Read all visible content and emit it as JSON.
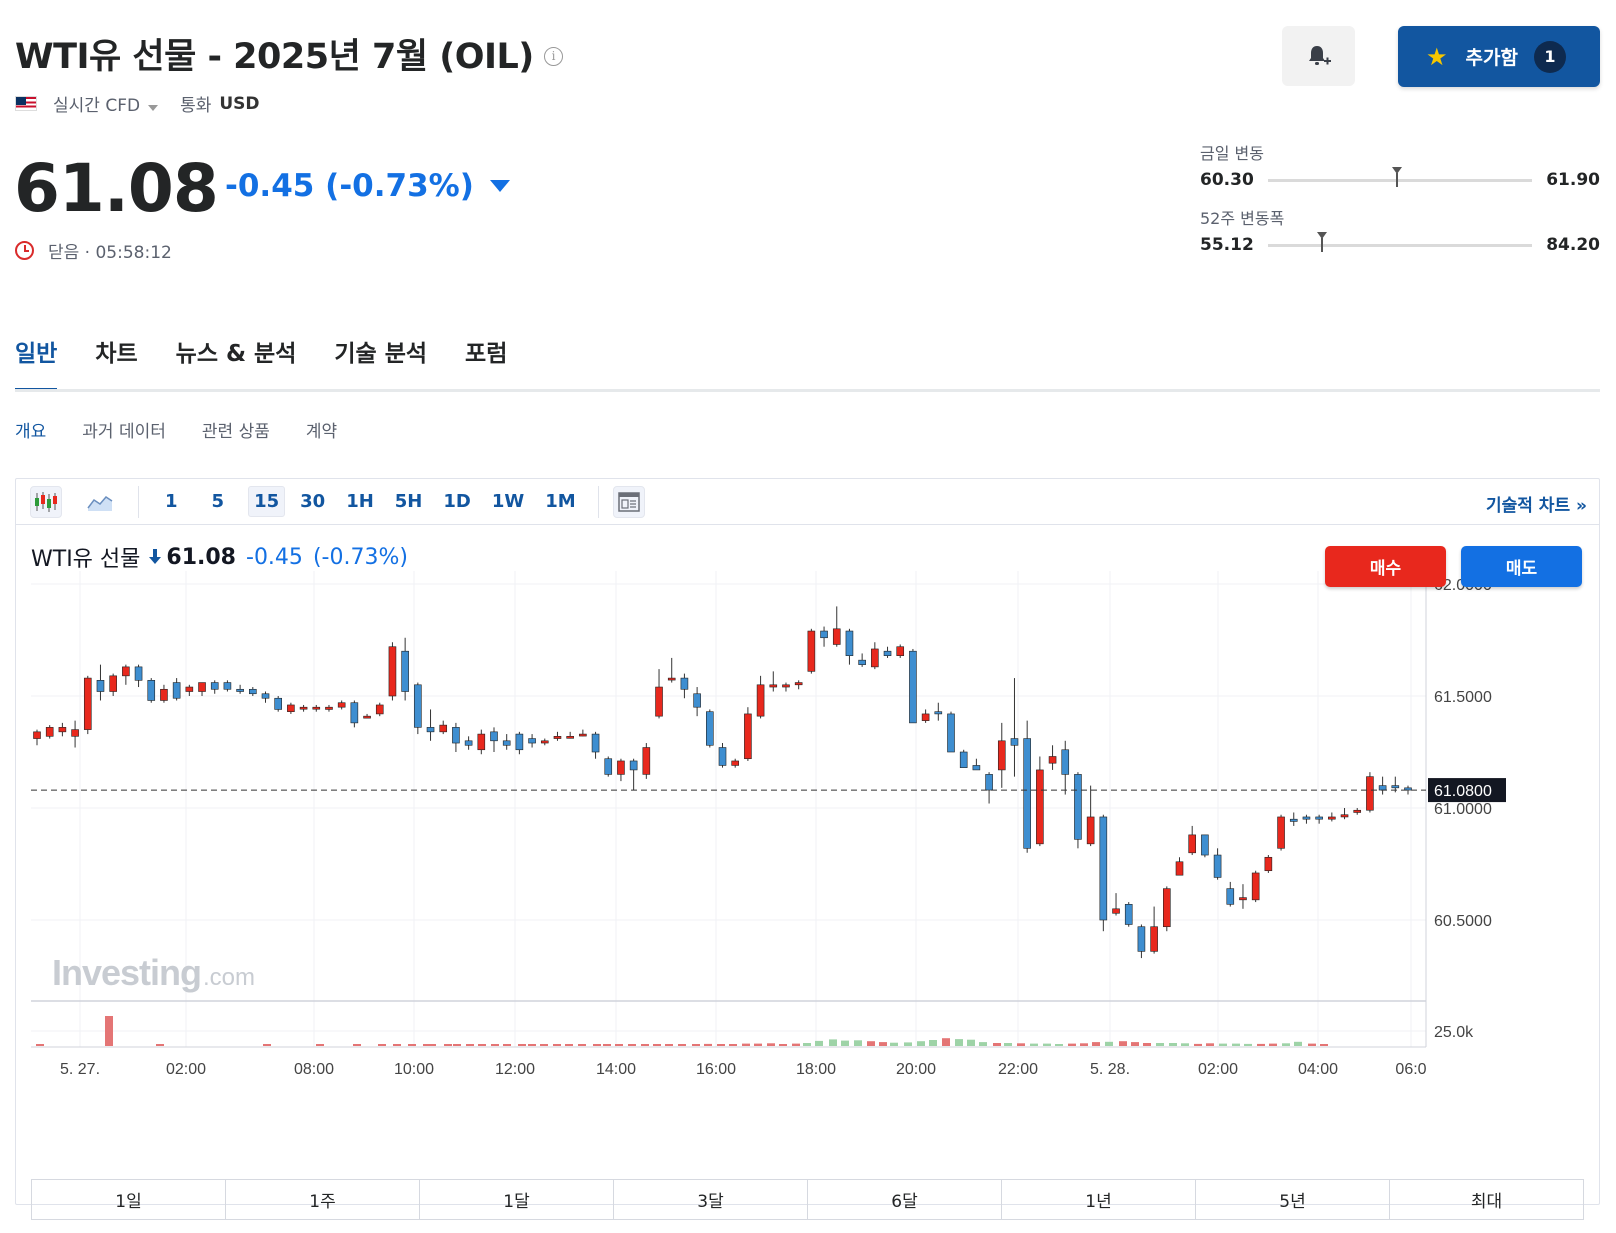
{
  "header": {
    "title": "WTI유 선물 - 2025년 7월 (OIL)",
    "info_symbol": "i",
    "market_type": "실시간 CFD",
    "currency_label": "통화",
    "currency": "USD",
    "add_button_label": "추가함",
    "add_button_count": "1"
  },
  "quote": {
    "price": "61.08",
    "change": "-0.45 (-0.73%)",
    "status": "닫음 · 05:58:12"
  },
  "ranges": {
    "day": {
      "label": "금일 변동",
      "low": "60.30",
      "high": "61.90",
      "position": 0.49
    },
    "week52": {
      "label": "52주 변동폭",
      "low": "55.12",
      "high": "84.20",
      "position": 0.205
    }
  },
  "tabs": [
    "일반",
    "차트",
    "뉴스 & 분석",
    "기술 분석",
    "포럼"
  ],
  "subtabs": [
    "개요",
    "과거 데이터",
    "관련 상품",
    "계약"
  ],
  "toolbar": {
    "intervals": [
      "1",
      "5",
      "15",
      "30",
      "1H",
      "5H",
      "1D",
      "1W",
      "1M"
    ],
    "selected_interval": "15",
    "tech_chart_link": "기술적 차트 »"
  },
  "legend": {
    "name": "WTI유 선물",
    "price": "61.08",
    "change": "-0.45",
    "percent": "(-0.73%)"
  },
  "trade": {
    "buy": "매수",
    "sell": "매도"
  },
  "watermark": {
    "brand": "Investing",
    "suffix": ".com"
  },
  "periods": [
    "1일",
    "1주",
    "1달",
    "3달",
    "6달",
    "1년",
    "5년",
    "최대"
  ],
  "colors": {
    "up": "#e8281d",
    "down": "#3e8ed0",
    "accent": "#1256a0",
    "change": "#1370e3"
  },
  "chart_data": {
    "type": "candlestick",
    "ylim": [
      60.2,
      62.05
    ],
    "y_ticks": [
      "62.0000",
      "61.5000",
      "61.0000",
      "60.5000"
    ],
    "last_price_label": "61.0800",
    "last_price": 61.08,
    "volume_tick": "25.0k",
    "x_ticks": [
      "5. 27.",
      "02:00",
      "08:00",
      "10:00",
      "12:00",
      "14:00",
      "16:00",
      "18:00",
      "20:00",
      "22:00",
      "5. 28.",
      "02:00",
      "04:00",
      "06:0"
    ],
    "candles": [
      [
        61.31,
        61.34,
        61.28,
        61.35
      ],
      [
        61.32,
        61.36,
        61.31,
        61.37
      ],
      [
        61.34,
        61.36,
        61.32,
        61.38
      ],
      [
        61.32,
        61.35,
        61.27,
        61.39
      ],
      [
        61.35,
        61.58,
        61.33,
        61.59
      ],
      [
        61.57,
        61.52,
        61.48,
        61.64
      ],
      [
        61.52,
        61.59,
        61.5,
        61.6
      ],
      [
        61.59,
        61.63,
        61.55,
        61.64
      ],
      [
        61.63,
        61.57,
        61.54,
        61.64
      ],
      [
        61.57,
        61.48,
        61.47,
        61.58
      ],
      [
        61.48,
        61.53,
        61.47,
        61.55
      ],
      [
        61.56,
        61.49,
        61.48,
        61.58
      ],
      [
        61.52,
        61.54,
        61.5,
        61.55
      ],
      [
        61.52,
        61.56,
        61.5,
        61.56
      ],
      [
        61.56,
        61.53,
        61.51,
        61.57
      ],
      [
        61.56,
        61.53,
        61.52,
        61.57
      ],
      [
        61.53,
        61.52,
        61.51,
        61.55
      ],
      [
        61.53,
        61.51,
        61.5,
        61.54
      ],
      [
        61.51,
        61.49,
        61.47,
        61.52
      ],
      [
        61.49,
        61.44,
        61.43,
        61.5
      ],
      [
        61.43,
        61.46,
        61.42,
        61.47
      ],
      [
        61.45,
        61.45,
        61.43,
        61.46
      ],
      [
        61.45,
        61.45,
        61.43,
        61.46
      ],
      [
        61.44,
        61.45,
        61.43,
        61.46
      ],
      [
        61.45,
        61.47,
        61.44,
        61.48
      ],
      [
        61.47,
        61.38,
        61.36,
        61.48
      ],
      [
        61.41,
        61.41,
        61.4,
        61.42
      ],
      [
        61.42,
        61.46,
        61.41,
        61.47
      ],
      [
        61.5,
        61.72,
        61.48,
        61.74
      ],
      [
        61.7,
        61.52,
        61.48,
        61.76
      ],
      [
        61.55,
        61.36,
        61.33,
        61.56
      ],
      [
        61.36,
        61.34,
        61.3,
        61.44
      ],
      [
        61.34,
        61.37,
        61.33,
        61.39
      ],
      [
        61.36,
        61.29,
        61.25,
        61.38
      ],
      [
        61.3,
        61.28,
        61.26,
        61.32
      ],
      [
        61.26,
        61.33,
        61.24,
        61.35
      ],
      [
        61.34,
        61.3,
        61.25,
        61.36
      ],
      [
        61.3,
        61.28,
        61.26,
        61.33
      ],
      [
        61.33,
        61.26,
        61.24,
        61.34
      ],
      [
        61.31,
        61.29,
        61.27,
        61.33
      ],
      [
        61.29,
        61.3,
        61.28,
        61.31
      ],
      [
        61.31,
        61.32,
        61.3,
        61.34
      ],
      [
        61.32,
        61.32,
        61.31,
        61.34
      ],
      [
        61.33,
        61.33,
        61.32,
        61.35
      ],
      [
        61.33,
        61.25,
        61.22,
        61.34
      ],
      [
        61.22,
        61.15,
        61.14,
        61.23
      ],
      [
        61.15,
        61.21,
        61.12,
        61.22
      ],
      [
        61.21,
        61.17,
        61.08,
        61.22
      ],
      [
        61.15,
        61.27,
        61.13,
        61.29
      ],
      [
        61.41,
        61.54,
        61.4,
        61.62
      ],
      [
        61.58,
        61.58,
        61.56,
        61.67
      ],
      [
        61.58,
        61.53,
        61.49,
        61.6
      ],
      [
        61.51,
        61.45,
        61.41,
        61.54
      ],
      [
        61.43,
        61.28,
        61.27,
        61.44
      ],
      [
        61.27,
        61.19,
        61.18,
        61.29
      ],
      [
        61.19,
        61.21,
        61.18,
        61.22
      ],
      [
        61.22,
        61.42,
        61.21,
        61.45
      ],
      [
        61.41,
        61.55,
        61.4,
        61.59
      ],
      [
        61.54,
        61.55,
        61.52,
        61.61
      ],
      [
        61.54,
        61.55,
        61.52,
        61.56
      ],
      [
        61.55,
        61.56,
        61.53,
        61.57
      ],
      [
        61.61,
        61.79,
        61.6,
        61.8
      ],
      [
        61.79,
        61.76,
        61.72,
        61.81
      ],
      [
        61.73,
        61.8,
        61.72,
        61.9
      ],
      [
        61.79,
        61.68,
        61.64,
        61.8
      ],
      [
        61.66,
        61.64,
        61.63,
        61.69
      ],
      [
        61.63,
        61.71,
        61.62,
        61.74
      ],
      [
        61.7,
        61.68,
        61.67,
        61.72
      ],
      [
        61.68,
        61.72,
        61.67,
        61.73
      ],
      [
        61.7,
        61.38,
        61.38,
        61.71
      ],
      [
        61.39,
        61.42,
        61.38,
        61.44
      ],
      [
        61.43,
        61.42,
        61.39,
        61.47
      ],
      [
        61.42,
        61.25,
        61.25,
        61.43
      ],
      [
        61.25,
        61.18,
        61.18,
        61.26
      ],
      [
        61.19,
        61.17,
        61.17,
        61.22
      ],
      [
        61.15,
        61.08,
        61.02,
        61.16
      ],
      [
        61.17,
        61.3,
        61.09,
        61.38
      ],
      [
        61.31,
        61.28,
        61.14,
        61.58
      ],
      [
        61.31,
        60.82,
        60.8,
        61.39
      ],
      [
        60.84,
        61.17,
        60.83,
        61.23
      ],
      [
        61.2,
        61.23,
        61.17,
        61.28
      ],
      [
        61.26,
        61.15,
        61.06,
        61.3
      ],
      [
        61.15,
        60.86,
        60.82,
        61.16
      ],
      [
        60.84,
        60.96,
        60.83,
        61.1
      ],
      [
        60.96,
        60.5,
        60.45,
        60.97
      ],
      [
        60.53,
        60.55,
        60.52,
        60.62
      ],
      [
        60.57,
        60.48,
        60.47,
        60.58
      ],
      [
        60.47,
        60.36,
        60.33,
        60.48
      ],
      [
        60.36,
        60.47,
        60.35,
        60.56
      ],
      [
        60.47,
        60.64,
        60.45,
        60.65
      ],
      [
        60.7,
        60.76,
        60.7,
        60.78
      ],
      [
        60.8,
        60.88,
        60.79,
        60.92
      ],
      [
        60.88,
        60.79,
        60.78,
        60.88
      ],
      [
        60.79,
        60.69,
        60.68,
        60.82
      ],
      [
        60.64,
        60.57,
        60.56,
        60.67
      ],
      [
        60.59,
        60.6,
        60.55,
        60.66
      ],
      [
        60.59,
        60.71,
        60.58,
        60.72
      ],
      [
        60.72,
        60.78,
        60.71,
        60.79
      ],
      [
        60.82,
        60.96,
        60.81,
        60.97
      ],
      [
        60.95,
        60.94,
        60.92,
        60.98
      ],
      [
        60.96,
        60.95,
        60.93,
        60.97
      ],
      [
        60.96,
        60.95,
        60.93,
        60.97
      ],
      [
        60.95,
        60.96,
        60.94,
        60.98
      ],
      [
        60.96,
        60.97,
        60.95,
        61.0
      ],
      [
        60.98,
        60.99,
        60.97,
        61.0
      ],
      [
        60.99,
        61.14,
        60.98,
        61.16
      ],
      [
        61.1,
        61.08,
        61.06,
        61.14
      ],
      [
        61.1,
        61.09,
        61.07,
        61.14
      ],
      [
        61.09,
        61.08,
        61.06,
        61.1
      ]
    ],
    "volume": [
      [
        3,
        0.03
      ],
      [
        72,
        1.0
      ],
      [
        123,
        0.05
      ],
      [
        230,
        0.04
      ],
      [
        283,
        0.03
      ],
      [
        320,
        0.03
      ],
      [
        345,
        0.04
      ],
      [
        360,
        0.03
      ],
      [
        375,
        0.03
      ],
      [
        390,
        0.03
      ],
      [
        395,
        0.04
      ],
      [
        411,
        0.03
      ],
      [
        420,
        0.04
      ],
      [
        433,
        0.03
      ],
      [
        445,
        0.04
      ],
      [
        458,
        0.04
      ],
      [
        470,
        0.03
      ],
      [
        485,
        0.04
      ],
      [
        495,
        0.03
      ],
      [
        507,
        0.03
      ],
      [
        520,
        0.04
      ],
      [
        532,
        0.03
      ],
      [
        545,
        0.03
      ],
      [
        560,
        0.04
      ],
      [
        570,
        0.04
      ],
      [
        582,
        0.03
      ],
      [
        595,
        0.04
      ],
      [
        608,
        0.03
      ],
      [
        620,
        0.05
      ],
      [
        632,
        0.05
      ],
      [
        645,
        0.04
      ],
      [
        659,
        0.05
      ],
      [
        671,
        0.07
      ],
      [
        684,
        0.06
      ],
      [
        696,
        0.05
      ],
      [
        709,
        0.08
      ],
      [
        721,
        0.08
      ],
      [
        734,
        0.09
      ],
      [
        746,
        0.06
      ],
      [
        759,
        0.08
      ],
      [
        770,
        0.1
      ],
      [
        782,
        0.17
      ],
      [
        796,
        0.22
      ],
      [
        808,
        0.18
      ],
      [
        821,
        0.19
      ],
      [
        834,
        0.16
      ],
      [
        846,
        0.13
      ],
      [
        857,
        0.11
      ],
      [
        871,
        0.12
      ],
      [
        884,
        0.16
      ],
      [
        896,
        0.2
      ],
      [
        909,
        0.26
      ],
      [
        922,
        0.23
      ],
      [
        934,
        0.21
      ],
      [
        946,
        0.13
      ],
      [
        960,
        0.1
      ],
      [
        971,
        0.1
      ],
      [
        984,
        0.09
      ],
      [
        997,
        0.08
      ],
      [
        1010,
        0.08
      ],
      [
        1022,
        0.06
      ],
      [
        1035,
        0.08
      ],
      [
        1047,
        0.09
      ],
      [
        1059,
        0.13
      ],
      [
        1072,
        0.14
      ],
      [
        1086,
        0.16
      ],
      [
        1098,
        0.13
      ],
      [
        1110,
        0.1
      ],
      [
        1123,
        0.1
      ],
      [
        1136,
        0.1
      ],
      [
        1148,
        0.09
      ],
      [
        1161,
        0.07
      ],
      [
        1173,
        0.09
      ],
      [
        1186,
        0.08
      ],
      [
        1199,
        0.08
      ],
      [
        1211,
        0.07
      ],
      [
        1224,
        0.07
      ],
      [
        1236,
        0.08
      ],
      [
        1249,
        0.09
      ],
      [
        1261,
        0.14
      ],
      [
        1275,
        0.08
      ],
      [
        1287,
        0.06
      ]
    ]
  }
}
